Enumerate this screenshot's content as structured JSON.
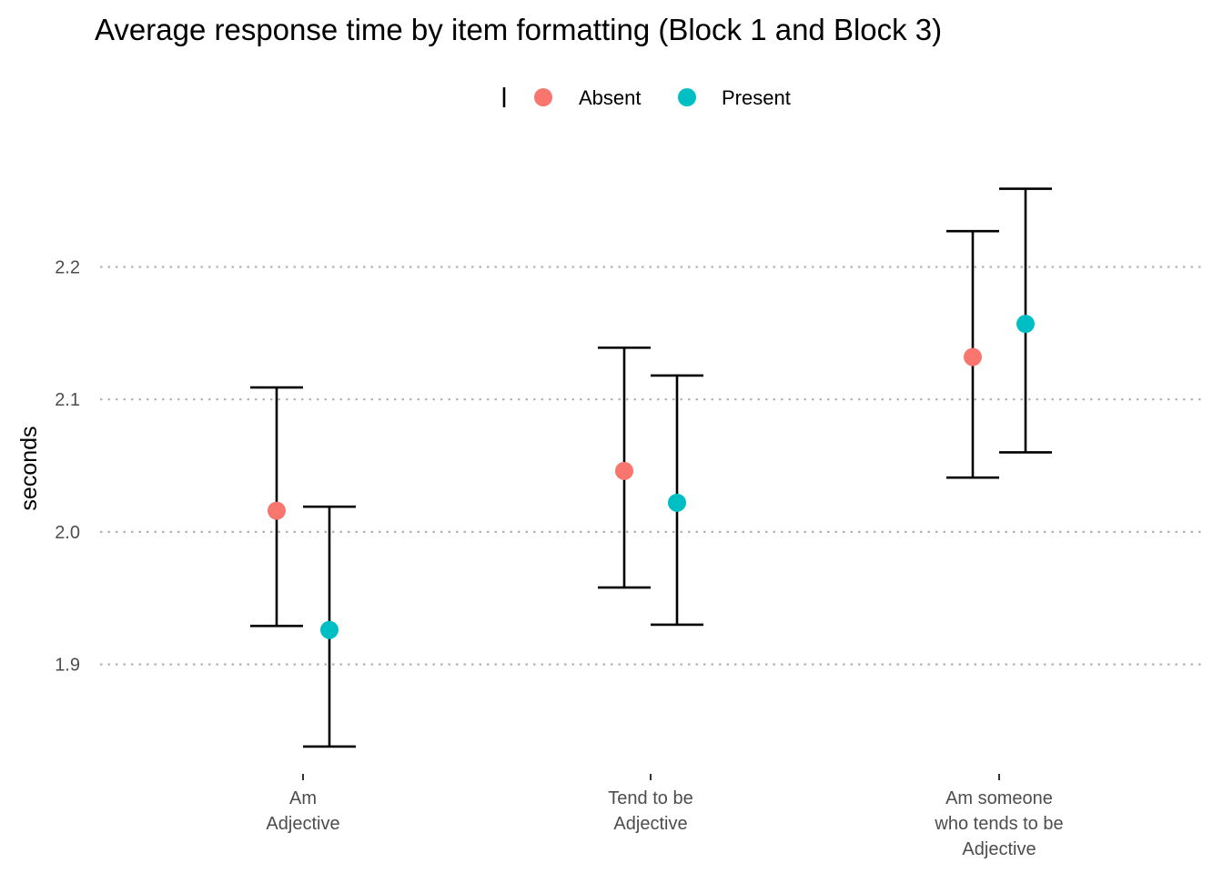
{
  "chart_data": {
    "type": "scatter",
    "title": "Average response time by item formatting (Block 1 and Block 3)",
    "xlabel": "",
    "ylabel": "seconds",
    "ylim": [
      1.835,
      2.275
    ],
    "y_ticks": [
      1.9,
      2.0,
      2.1,
      2.2
    ],
    "grid": "horizontal dotted",
    "legend_position": "top",
    "categories": [
      "Am\nAdjective",
      "Tend to be\nAdjective",
      "Am someone\nwho tends to be\nAdjective"
    ],
    "series": [
      {
        "name": "Absent",
        "color": "#F8766D",
        "values": [
          2.016,
          2.046,
          2.132
        ],
        "ci_low": [
          1.929,
          1.958,
          2.041
        ],
        "ci_high": [
          2.109,
          2.139,
          2.227
        ]
      },
      {
        "name": "Present",
        "color": "#00BFC4",
        "values": [
          1.926,
          2.022,
          2.157
        ],
        "ci_low": [
          1.838,
          1.93,
          2.06
        ],
        "ci_high": [
          2.019,
          2.118,
          2.259
        ]
      }
    ]
  }
}
